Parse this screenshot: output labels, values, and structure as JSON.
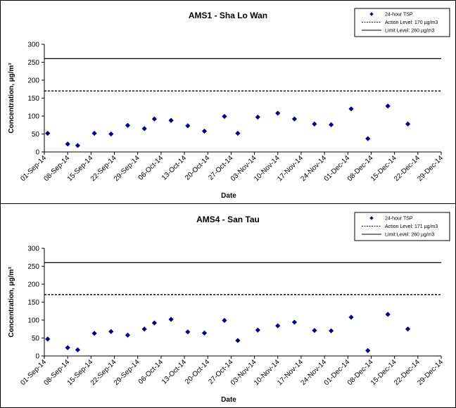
{
  "chart_data": [
    {
      "type": "scatter",
      "title": "AMS1 - Sha Lo Wan",
      "xlabel": "Date",
      "ylabel": "Concentration, µg/m³",
      "ylim": [
        0,
        300
      ],
      "yticks": [
        "0",
        "50",
        "100",
        "150",
        "200",
        "250",
        "300"
      ],
      "categories": [
        "01-Sep-14",
        "08-Sep-14",
        "15-Sep-14",
        "22-Sep-14",
        "29-Sep-14",
        "06-Oct-14",
        "13-Oct-14",
        "20-Oct-14",
        "27-Oct-14",
        "03-Nov-14",
        "10-Nov-14",
        "17-Nov-14",
        "24-Nov-14",
        "01-Dec-14",
        "08-Dec-14",
        "15-Dec-14",
        "22-Dec-14",
        "29-Dec-14"
      ],
      "x_range_days": [
        0,
        119
      ],
      "series": [
        {
          "name": "24-hour TSP",
          "color": "#000080",
          "marker": "diamond",
          "points": [
            [
              1,
              52
            ],
            [
              7,
              22
            ],
            [
              10,
              18
            ],
            [
              15,
              52
            ],
            [
              20,
              50
            ],
            [
              25,
              74
            ],
            [
              30,
              65
            ],
            [
              33,
              92
            ],
            [
              38,
              88
            ],
            [
              43,
              73
            ],
            [
              48,
              58
            ],
            [
              54,
              99
            ],
            [
              58,
              52
            ],
            [
              64,
              97
            ],
            [
              70,
              108
            ],
            [
              75,
              92
            ],
            [
              81,
              78
            ],
            [
              86,
              76
            ],
            [
              92,
              120
            ],
            [
              97,
              37
            ],
            [
              103,
              128
            ],
            [
              109,
              78
            ]
          ]
        }
      ],
      "lines": [
        {
          "name": "Action Level: 170 µg/m3",
          "value": 170,
          "style": "dashed"
        },
        {
          "name": "Limit Level: 260 µg/m3",
          "value": 260,
          "style": "solid"
        }
      ],
      "legend_position": "top-right"
    },
    {
      "type": "scatter",
      "title": "AMS4 - San Tau",
      "xlabel": "Date",
      "ylabel": "Concentration, µg/m³",
      "ylim": [
        0,
        300
      ],
      "yticks": [
        "0",
        "50",
        "100",
        "150",
        "200",
        "250",
        "300"
      ],
      "categories": [
        "01-Sep-14",
        "08-Sep-14",
        "15-Sep-14",
        "22-Sep-14",
        "29-Sep-14",
        "06-Oct-14",
        "13-Oct-14",
        "20-Oct-14",
        "27-Oct-14",
        "03-Nov-14",
        "10-Nov-14",
        "17-Nov-14",
        "24-Nov-14",
        "01-Dec-14",
        "08-Dec-14",
        "15-Dec-14",
        "22-Dec-14",
        "29-Dec-14"
      ],
      "x_range_days": [
        0,
        119
      ],
      "series": [
        {
          "name": "24-hour TSP",
          "color": "#000080",
          "marker": "diamond",
          "points": [
            [
              1,
              47
            ],
            [
              7,
              23
            ],
            [
              10,
              17
            ],
            [
              15,
              63
            ],
            [
              20,
              68
            ],
            [
              25,
              58
            ],
            [
              30,
              75
            ],
            [
              33,
              92
            ],
            [
              38,
              102
            ],
            [
              43,
              67
            ],
            [
              48,
              64
            ],
            [
              54,
              99
            ],
            [
              58,
              43
            ],
            [
              64,
              72
            ],
            [
              70,
              84
            ],
            [
              75,
              94
            ],
            [
              81,
              71
            ],
            [
              86,
              70
            ],
            [
              92,
              108
            ],
            [
              97,
              15
            ],
            [
              103,
              116
            ],
            [
              109,
              75
            ]
          ]
        }
      ],
      "lines": [
        {
          "name": "Action Level: 171 µg/m3",
          "value": 171,
          "style": "dashed"
        },
        {
          "name": "Limit Level: 260 µg/m3",
          "value": 260,
          "style": "solid"
        }
      ],
      "legend_position": "top-right"
    }
  ]
}
